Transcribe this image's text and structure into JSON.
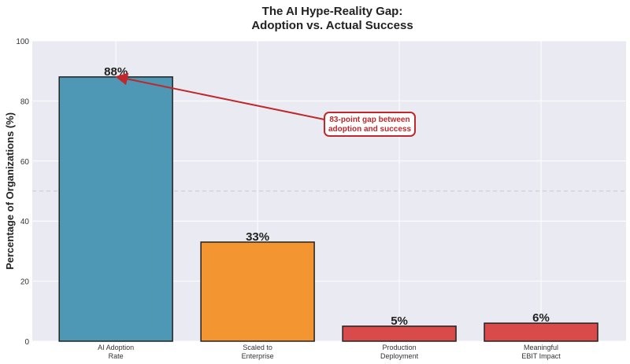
{
  "chart_data": {
    "type": "bar",
    "title": "The AI Hype-Reality Gap:\nAdoption vs. Actual Success",
    "title_lines": [
      "The AI Hype-Reality Gap:",
      "Adoption vs. Actual Success"
    ],
    "xlabel": "",
    "ylabel": "Percentage of Organizations (%)",
    "categories": [
      "AI Adoption\nRate",
      "Scaled to\nEnterprise",
      "Production\nDeployment",
      "Meaningful\nEBIT Impact"
    ],
    "values": [
      88,
      33,
      5,
      6
    ],
    "data_labels": [
      "88%",
      "33%",
      "5%",
      "6%"
    ],
    "colors": [
      "#4e97b5",
      "#f39530",
      "#d94b4b",
      "#d94b4b"
    ],
    "ylim": [
      0,
      100
    ],
    "yticks": [
      0,
      20,
      40,
      60,
      80,
      100
    ],
    "grid": true,
    "reference_line": {
      "y": 50,
      "style": "dashed"
    },
    "annotation": {
      "text_lines": [
        "83-point gap between",
        "adoption and success"
      ],
      "arrow_target": {
        "category": "AI Adoption\nRate",
        "y": 88
      },
      "color": "#c0282b"
    },
    "background": "#eaeaf2"
  }
}
